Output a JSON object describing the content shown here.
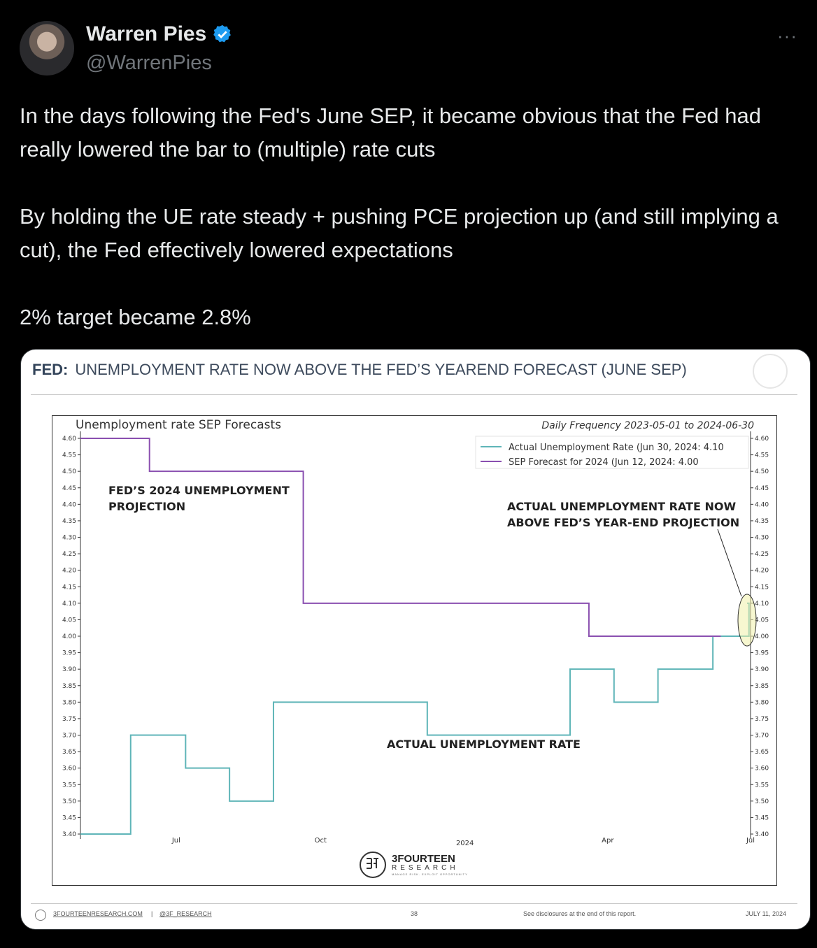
{
  "tweet": {
    "author_name": "Warren Pies",
    "handle": "@WarrenPies",
    "more_label": "···",
    "text": "In the days following the Fed's June SEP, it became obvious that the Fed had really lowered the bar to (multiple) rate cuts\n\nBy holding the UE rate steady + pushing PCE projection up (and still implying a cut), the Fed effectively lowered expectations\n\n2% target became 2.8%"
  },
  "slide": {
    "title_bold": "FED:",
    "title_rest": "UNEMPLOYMENT RATE NOW ABOVE THE FED’S YEAREND FORECAST (JUNE SEP)",
    "brand_name": "3FOURTEEN",
    "brand_sub": "RESEARCH",
    "brand_tagline": "MANAGE RISK. EXPLOIT OPPORTUNITY",
    "footer_site": "3FOURTEENRESEARCH.COM",
    "footer_sep": "|",
    "footer_handle": "@3F_RESEARCH",
    "page_number": "38",
    "disclosure": "See disclosures at the end of this report.",
    "date": "JULY 11, 2024"
  },
  "chart_data": {
    "type": "line",
    "title": "Unemployment rate SEP Forecasts",
    "subtitle": "Daily Frequency 2023-05-01 to 2024-06-30",
    "x_tick_labels": [
      "Jul",
      "Oct",
      "2024",
      "Apr",
      "Jul"
    ],
    "x_tick_dates": [
      "2023-07-01",
      "2023-10-01",
      "2024-01-01",
      "2024-04-01",
      "2024-07-01"
    ],
    "xlim": [
      "2023-05-01",
      "2024-07-01"
    ],
    "ylim": [
      3.4,
      4.6
    ],
    "y_ticks": [
      "4.60",
      "4.55",
      "4.50",
      "4.45",
      "4.40",
      "4.35",
      "4.30",
      "4.25",
      "4.20",
      "4.15",
      "4.10",
      "4.05",
      "4.00",
      "3.95",
      "3.90",
      "3.85",
      "3.80",
      "3.75",
      "3.70",
      "3.65",
      "3.60",
      "3.55",
      "3.50",
      "3.45",
      "3.40"
    ],
    "grid": false,
    "legend_position": "top-right",
    "series": [
      {
        "name": "Actual Unemployment Rate (Jun 30, 2024: 4.10",
        "color": "#5fb5b8",
        "step": true,
        "points": [
          [
            "2023-05-01",
            3.4
          ],
          [
            "2023-06-02",
            3.7
          ],
          [
            "2023-07-07",
            3.6
          ],
          [
            "2023-08-04",
            3.5
          ],
          [
            "2023-09-01",
            3.8
          ],
          [
            "2023-12-08",
            3.7
          ],
          [
            "2024-03-08",
            3.9
          ],
          [
            "2024-04-05",
            3.8
          ],
          [
            "2024-05-03",
            3.9
          ],
          [
            "2024-06-07",
            4.0
          ],
          [
            "2024-06-30",
            4.1
          ]
        ]
      },
      {
        "name": "SEP Forecast for 2024 (Jun 12, 2024: 4.00",
        "color": "#8a4fb0",
        "step": true,
        "points": [
          [
            "2023-05-01",
            4.6
          ],
          [
            "2023-06-14",
            4.5
          ],
          [
            "2023-09-20",
            4.1
          ],
          [
            "2024-03-20",
            4.0
          ],
          [
            "2024-06-12",
            4.0
          ]
        ]
      }
    ],
    "annotations": [
      {
        "text": "FED’S 2024 UNEMPLOYMENT",
        "text2": "PROJECTION"
      },
      {
        "text": "ACTUAL UNEMPLOYMENT RATE NOW",
        "text2": "ABOVE FED’S YEAR-END PROJECTION"
      },
      {
        "text": "ACTUAL UNEMPLOYMENT RATE",
        "text2": ""
      }
    ]
  }
}
